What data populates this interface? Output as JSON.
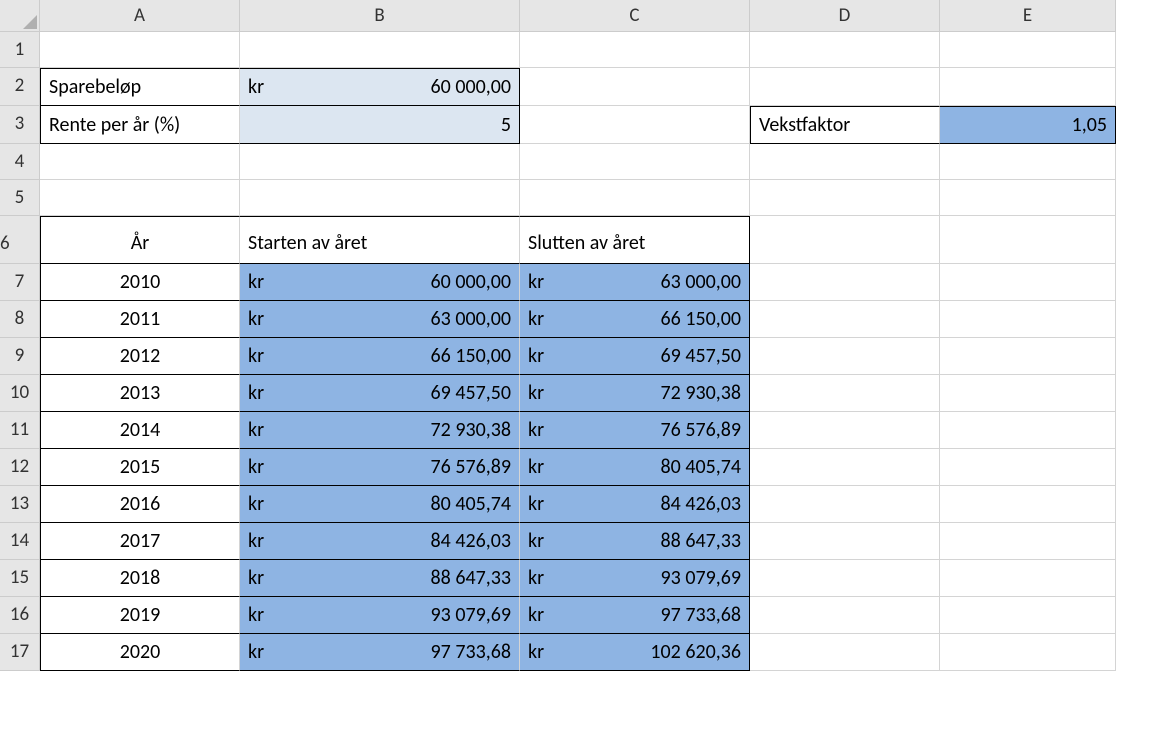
{
  "columns": [
    "A",
    "B",
    "C",
    "D",
    "E"
  ],
  "rowNumbers": [
    "1",
    "2",
    "3",
    "4",
    "5",
    "6",
    "7",
    "8",
    "9",
    "10",
    "11",
    "12",
    "13",
    "14",
    "15",
    "16",
    "17"
  ],
  "labels": {
    "sparebelop": "Sparebeløp",
    "rentePerAr": "Rente per år (%)",
    "vekstfaktor": "Vekstfaktor",
    "ar": "År",
    "startenAvAret": "Starten av året",
    "sluttenAvAret": "Slutten av året"
  },
  "inputs": {
    "sparebelopPrefix": "kr",
    "sparebelopValue": "60 000,00",
    "renteValue": "5",
    "vekstfaktorValue": "1,05"
  },
  "table": {
    "years": [
      "2010",
      "2011",
      "2012",
      "2013",
      "2014",
      "2015",
      "2016",
      "2017",
      "2018",
      "2019",
      "2020"
    ],
    "currencyPrefix": "kr",
    "startValues": [
      "60 000,00",
      "63 000,00",
      "66 150,00",
      "69 457,50",
      "72 930,38",
      "76 576,89",
      "80 405,74",
      "84 426,03",
      "88 647,33",
      "93 079,69",
      "97 733,68"
    ],
    "endValues": [
      "63 000,00",
      "66 150,00",
      "69 457,50",
      "72 930,38",
      "76 576,89",
      "80 405,74",
      "84 426,03",
      "88 647,33",
      "93 079,69",
      "97 733,68",
      "102 620,36"
    ]
  },
  "colors": {
    "headerBg": "#e6e6e6",
    "lightBlue": "#dce6f1",
    "mediumBlue": "#8eb4e3",
    "gridline": "#d4d4d4",
    "border": "#000000"
  }
}
